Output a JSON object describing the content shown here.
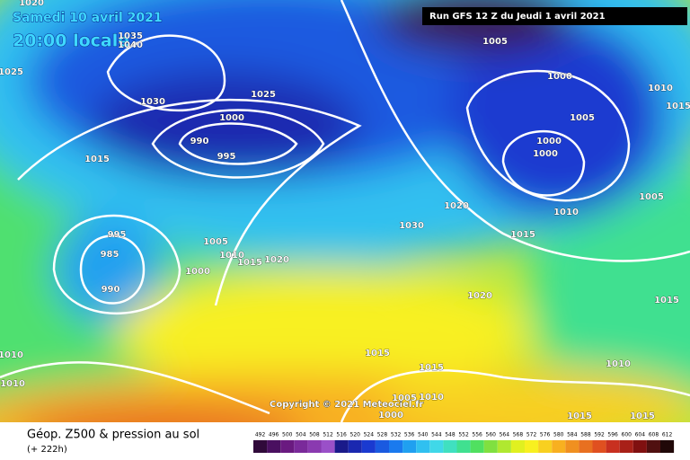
{
  "header": {
    "date": "Samedi 10 avril 2021",
    "time": "20:00 locale",
    "run": "Run GFS 12 Z du Jeudi 1 avril 2021"
  },
  "copyright": "Copyright © 2021 Meteociel.fr",
  "footer": {
    "title": "Géop. Z500 & pression au sol",
    "lead": "(+ 222h)"
  },
  "isobar_labels": [
    1020,
    1035,
    1040,
    1025,
    1030,
    1025,
    1000,
    990,
    995,
    1015,
    995,
    985,
    990,
    1005,
    1010,
    1015,
    1020,
    1000,
    1030,
    1020,
    1015,
    1020,
    1005,
    1000,
    1005,
    1000,
    1000,
    1010,
    1010,
    1015,
    1005,
    1015,
    1010,
    1010,
    1015,
    1015,
    1010,
    1005,
    1010,
    1000,
    1015,
    1015
  ],
  "scale": {
    "values": [
      492,
      496,
      500,
      504,
      508,
      512,
      516,
      520,
      524,
      528,
      532,
      536,
      540,
      544,
      548,
      552,
      556,
      560,
      564,
      568,
      572,
      576,
      580,
      584,
      588,
      592,
      596,
      600,
      604,
      608,
      612
    ],
    "colors": [
      "#300a3a",
      "#4a1060",
      "#6a1a80",
      "#7a2a9a",
      "#8a3ab0",
      "#9a50c8",
      "#1a1a8a",
      "#1a28b0",
      "#1a3ad0",
      "#1a5ae0",
      "#1a7aee",
      "#20a0f0",
      "#30c0f0",
      "#40d8e8",
      "#40e0c0",
      "#40e090",
      "#50e060",
      "#80e040",
      "#b0e830",
      "#e0f020",
      "#f8f020",
      "#f8d020",
      "#f8b020",
      "#f09020",
      "#e87020",
      "#e05020",
      "#c83020",
      "#a82018",
      "#801010",
      "#501010",
      "#200808"
    ]
  }
}
